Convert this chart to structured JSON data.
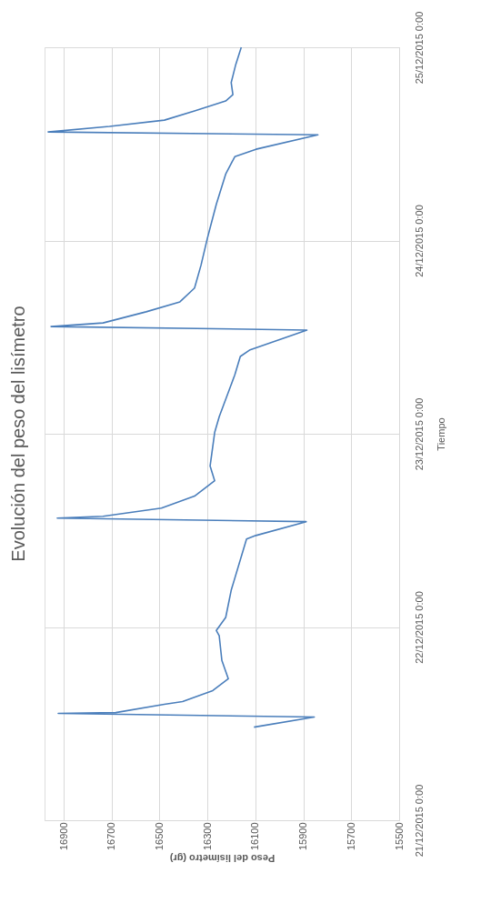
{
  "chart_data": {
    "type": "line",
    "orientation": "horizontal",
    "title": "Evolución del peso del lisímetro",
    "xlabel": "Peso del lisímetro (gr)",
    "ylabel": "Tiempo",
    "x": [
      "2015-12-21T11:34",
      "2015-12-21T12:49",
      "2015-12-21T13:16",
      "2015-12-21T13:22",
      "2015-12-21T14:24",
      "2015-12-21T14:44",
      "2015-12-21T16:06",
      "2015-12-21T17:34",
      "2015-12-21T19:51",
      "2015-12-21T22:54",
      "2015-12-21T23:34",
      "2015-12-22T01:11",
      "2015-12-22T04:34",
      "2015-12-22T10:55",
      "2015-12-22T11:22",
      "2015-12-22T13:05",
      "2015-12-22T13:31",
      "2015-12-22T13:45",
      "2015-12-22T14:46",
      "2015-12-22T16:15",
      "2015-12-22T18:10",
      "2015-12-22T20:00",
      "2015-12-23T00:10",
      "2015-12-23T02:07",
      "2015-12-23T07:19",
      "2015-12-23T09:36",
      "2015-12-23T10:23",
      "2015-12-23T12:53",
      "2015-12-23T13:19",
      "2015-12-23T13:46",
      "2015-12-23T15:09",
      "2015-12-23T16:23",
      "2015-12-23T18:06",
      "2015-12-23T20:56",
      "2015-12-24T00:13",
      "2015-12-24T04:31",
      "2015-12-24T08:15",
      "2015-12-24T10:25",
      "2015-12-24T11:20",
      "2015-12-24T13:08",
      "2015-12-24T13:29",
      "2015-12-24T14:10",
      "2015-12-24T14:57",
      "2015-12-24T16:05",
      "2015-12-24T17:20",
      "2015-12-24T18:07",
      "2015-12-24T19:37",
      "2015-12-24T21:52",
      "2015-12-25T00:00"
    ],
    "series": [
      {
        "color": "#4a7ebb",
        "values": [
          16106,
          15854,
          16923,
          16683,
          16480,
          16404,
          16278,
          16213,
          16240,
          16251,
          16263,
          16224,
          16201,
          16137,
          16098,
          15888,
          16927,
          16736,
          16492,
          16354,
          16270,
          16289,
          16270,
          16251,
          16186,
          16163,
          16125,
          15885,
          16953,
          16736,
          16556,
          16415,
          16354,
          16327,
          16301,
          16263,
          16224,
          16186,
          16098,
          15839,
          16965,
          16709,
          16480,
          16354,
          16224,
          16194,
          16201,
          16182,
          16159
        ]
      }
    ],
    "xlim": [
      16980,
      15500
    ],
    "xticks": [
      16900,
      16700,
      16500,
      16300,
      16100,
      15900,
      15700,
      15500
    ],
    "ylim": [
      "2015-12-21T00:00",
      "2015-12-25T00:00"
    ],
    "yticks": [
      {
        "value": "2015-12-21T00:00",
        "label": "21/12/2015 0:00"
      },
      {
        "value": "2015-12-22T00:00",
        "label": "22/12/2015 0:00"
      },
      {
        "value": "2015-12-23T00:00",
        "label": "23/12/2015 0:00"
      },
      {
        "value": "2015-12-24T00:00",
        "label": "24/12/2015 0:00"
      },
      {
        "value": "2015-12-25T00:00",
        "label": "25/12/2015 0:00"
      }
    ],
    "grid": true,
    "marker": "none",
    "line_style": "solid"
  }
}
